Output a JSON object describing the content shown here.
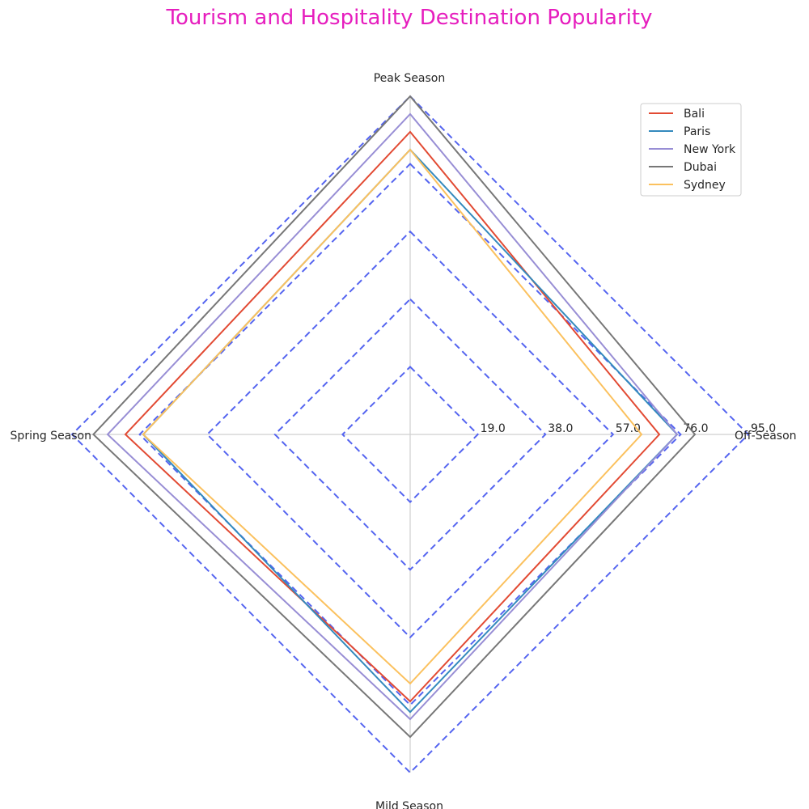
{
  "chart_data": {
    "type": "radar",
    "title": "Tourism and Hospitality Destination Popularity",
    "title_color": "#E61EBE",
    "axes": [
      "Peak Season",
      "Off-Season",
      "Mild Season",
      "Spring Season"
    ],
    "rmax": 95.0,
    "ticks": [
      19.0,
      38.0,
      57.0,
      76.0,
      95.0
    ],
    "tick_labels": [
      "19.0",
      "38.0",
      "57.0",
      "76.0",
      "95.0"
    ],
    "grid_color": "#5565F0",
    "grid_style": "dashed",
    "legend_position": "top-right",
    "series": [
      {
        "name": "Bali",
        "color": "#E24A33",
        "values": [
          85,
          70,
          75,
          80
        ]
      },
      {
        "name": "Paris",
        "color": "#348ABD",
        "values": [
          80,
          75,
          78,
          75
        ]
      },
      {
        "name": "New York",
        "color": "#988ED5",
        "values": [
          90,
          75,
          80,
          85
        ]
      },
      {
        "name": "Dubai",
        "color": "#777777",
        "values": [
          95,
          80,
          85,
          89
        ]
      },
      {
        "name": "Sydney",
        "color": "#FBC15E",
        "values": [
          80,
          65,
          70,
          75
        ]
      }
    ]
  }
}
